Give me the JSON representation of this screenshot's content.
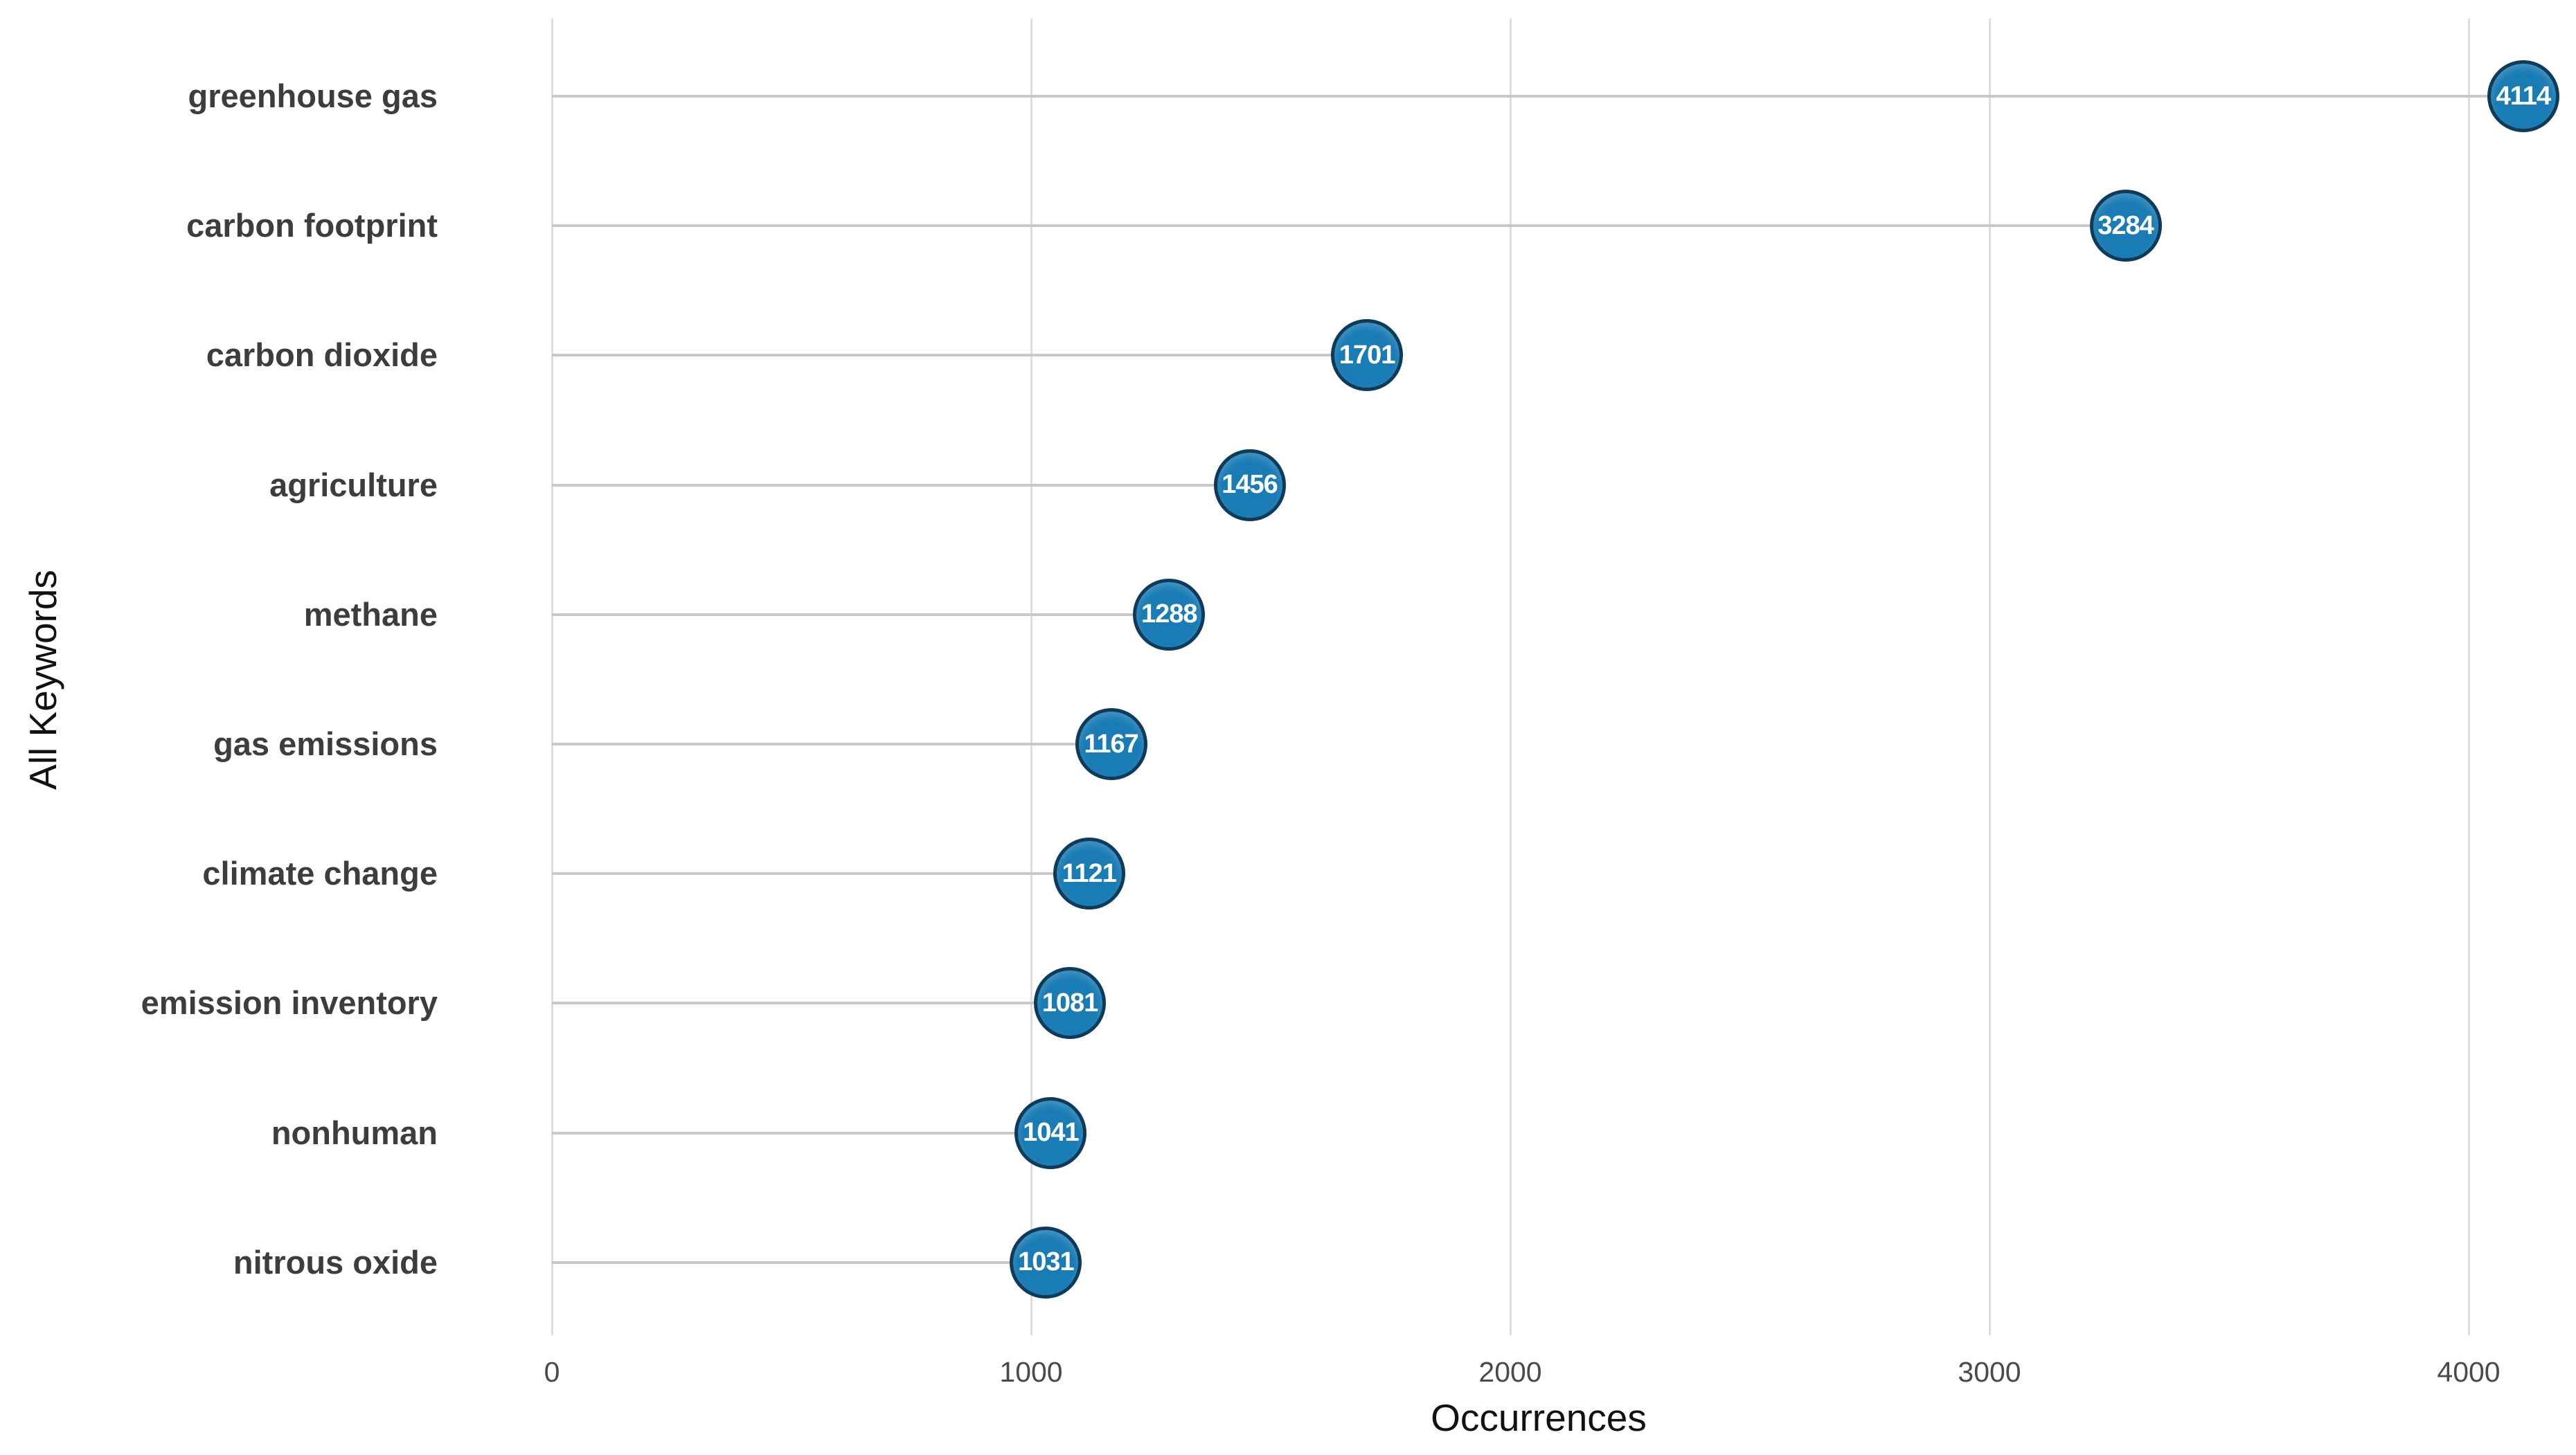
{
  "chart_data": {
    "type": "bar",
    "variant": "horizontal-lollipop",
    "title": "",
    "xlabel": "Occurrences",
    "ylabel": "All Keywords",
    "categories": [
      "greenhouse gas",
      "carbon footprint",
      "carbon dioxide",
      "agriculture",
      "methane",
      "gas emissions",
      "climate change",
      "emission inventory",
      "nonhuman",
      "nitrous oxide"
    ],
    "values": [
      4114,
      3284,
      1701,
      1456,
      1288,
      1167,
      1121,
      1081,
      1041,
      1031
    ],
    "xlim": [
      0,
      4225
    ],
    "xticks": [
      0,
      1000,
      2000,
      3000,
      4000
    ],
    "xtick_labels": [
      "0",
      "1000",
      "2000",
      "3000",
      "4000"
    ],
    "grid": "vertical gridlines only",
    "legend": "none",
    "data_labels": "value shown in white bold text inside each circle marker",
    "sort_order": "descending by value"
  },
  "colors": {
    "marker_fill": "#1a7cb5",
    "marker_border": "#0d3b59",
    "marker_value_text": "#ffffff",
    "gridline": "#dedede",
    "stem": "#c8c8c8",
    "category_label": "#3d3d3d",
    "tick_label": "#4a4a4a",
    "axis_title": "#111111",
    "background": "#ffffff"
  }
}
